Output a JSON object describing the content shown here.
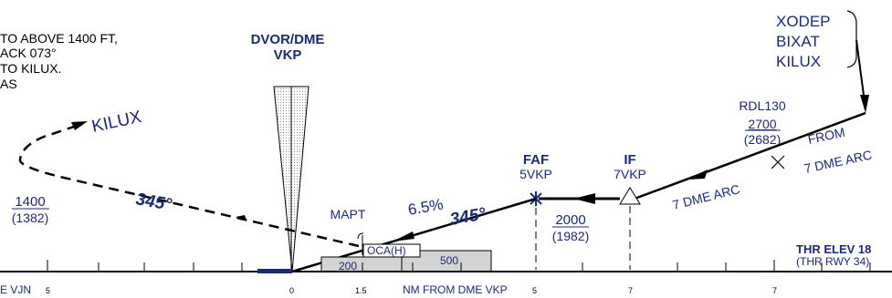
{
  "procedure_note": {
    "line1": "TO ABOVE 1400 FT,",
    "line2": "ACK  073°",
    "line3": " TO KILUX.",
    "line4": "AS"
  },
  "navaid": {
    "type": "DVOR/DME",
    "ident": "VKP"
  },
  "fixes": {
    "kilux": "KILUX",
    "mapt": "MAPT",
    "faf_label": "FAF",
    "faf_name": "5VKP",
    "if_label": "IF",
    "if_name": "7VKP",
    "entry_list": [
      "XODEP",
      "BIXAT",
      "KILUX"
    ],
    "radial": "RDL130"
  },
  "altitudes": {
    "missed_alt": "1400",
    "missed_alt_h": "(1382)",
    "faf_alt": "2000",
    "faf_alt_h": "(1982)",
    "arc_alt": "2700",
    "arc_alt_h": "(2682)",
    "box_low": "200",
    "box_high": "500",
    "oca_label": "OCA(H)"
  },
  "tracks": {
    "final_course": "345°",
    "missed_course": "345°",
    "gradient": "6.5%",
    "arc1": "7 DME ARC",
    "arc2": "FROM",
    "arc3": "7 DME ARC"
  },
  "threshold": {
    "elev": "THR ELEV 18",
    "rwy": "(THR RWY 34)"
  },
  "scale": {
    "left_label": "E VJN",
    "axis_label": "NM FROM DME VKP",
    "ticks": [
      "5",
      "0",
      "1.5",
      "5",
      "7",
      "7"
    ]
  },
  "colors": {
    "navy": "#1a2a7a",
    "black": "#000000",
    "terrain": "#d3d3d3"
  }
}
